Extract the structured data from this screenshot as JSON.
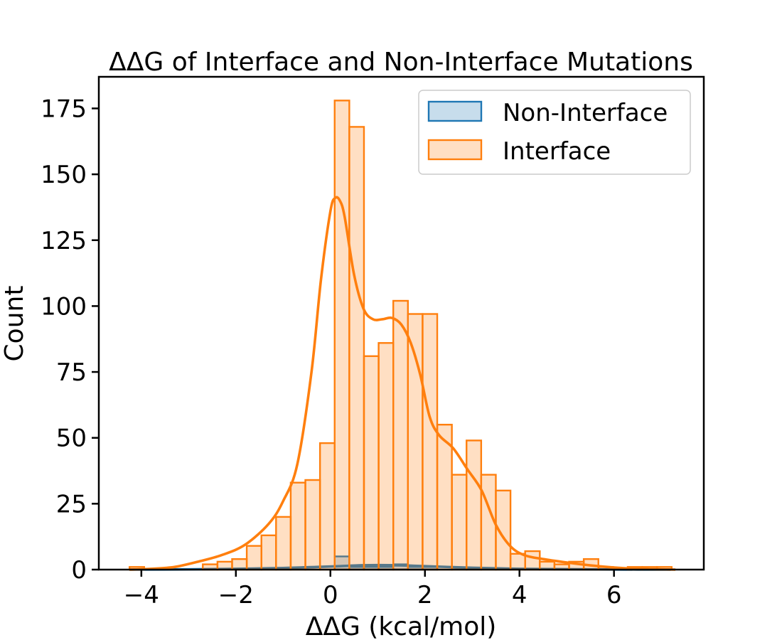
{
  "chart_data": {
    "type": "histogram",
    "title": "ΔΔG of Interface and Non-Interface Mutations",
    "xlabel": "ΔΔG (kcal/mol)",
    "ylabel": "Count",
    "xlim": [
      -4.9,
      7.9
    ],
    "ylim": [
      0,
      187
    ],
    "xticks": [
      -4,
      -2,
      0,
      2,
      4,
      6
    ],
    "xtick_labels": [
      "−4",
      "−2",
      "0",
      "2",
      "4",
      "6"
    ],
    "yticks": [
      0,
      25,
      50,
      75,
      100,
      125,
      150,
      175
    ],
    "ytick_labels": [
      "0",
      "25",
      "50",
      "75",
      "100",
      "125",
      "150",
      "175"
    ],
    "grid": false,
    "legend_position": "top-right",
    "bin_edges": [
      -4.25,
      -3.94,
      -3.63,
      -3.32,
      -3.01,
      -2.7,
      -2.39,
      -2.08,
      -1.77,
      -1.46,
      -1.15,
      -0.84,
      -0.53,
      -0.22,
      0.09,
      0.4,
      0.71,
      1.02,
      1.33,
      1.64,
      1.95,
      2.26,
      2.57,
      2.88,
      3.19,
      3.5,
      3.81,
      4.12,
      4.43,
      4.74,
      5.05,
      5.36,
      5.67,
      5.98,
      6.29,
      6.6,
      6.91,
      7.22
    ],
    "series": [
      {
        "name": "Non-Interface",
        "color": "#1f77b4",
        "counts": [
          0,
          0,
          0,
          0,
          0,
          0,
          0,
          0,
          0,
          0,
          0,
          0,
          0,
          0,
          5,
          1,
          1,
          1,
          2,
          1,
          1,
          0,
          0,
          0,
          0,
          0,
          0,
          0,
          0,
          0,
          0,
          0,
          0,
          0,
          0,
          0,
          0
        ],
        "kde_x": [
          -4.25,
          -3.0,
          -2.0,
          -1.0,
          -0.3,
          0.2,
          0.6,
          1.0,
          1.5,
          2.0,
          3.0,
          4.0,
          5.0,
          6.0,
          7.2
        ],
        "kde_y": [
          0,
          0.1,
          0.3,
          0.6,
          1.0,
          1.3,
          1.6,
          1.7,
          1.6,
          1.3,
          0.7,
          0.3,
          0.15,
          0.05,
          0
        ]
      },
      {
        "name": "Interface",
        "color": "#ff7f0e",
        "counts": [
          1,
          0,
          0,
          0,
          0,
          2,
          3,
          4,
          9,
          13,
          20,
          33,
          34,
          48,
          178,
          168,
          81,
          86,
          102,
          97,
          97,
          55,
          36,
          49,
          36,
          30,
          6,
          7,
          3,
          2,
          3,
          4,
          1,
          0,
          1,
          1,
          1
        ],
        "kde_x": [
          -4.25,
          -3.8,
          -3.3,
          -2.8,
          -2.3,
          -1.8,
          -1.3,
          -1.0,
          -0.7,
          -0.4,
          -0.2,
          0.0,
          0.1,
          0.2,
          0.3,
          0.5,
          0.7,
          0.9,
          1.1,
          1.3,
          1.5,
          1.7,
          1.9,
          2.1,
          2.3,
          2.6,
          2.9,
          3.2,
          3.5,
          3.8,
          4.1,
          4.5,
          5.0,
          5.5,
          6.0,
          6.5,
          7.0,
          7.3
        ],
        "kde_y": [
          0,
          0.3,
          1.0,
          3.0,
          5.5,
          9.5,
          17.5,
          26,
          40,
          75,
          110,
          136,
          141,
          140,
          134,
          112,
          99,
          95,
          95,
          95.5,
          93,
          86,
          74,
          58,
          51,
          46,
          38,
          30,
          17,
          9,
          5.5,
          4.0,
          2.7,
          1.6,
          0.8,
          0.3,
          0.1,
          0
        ]
      }
    ]
  }
}
